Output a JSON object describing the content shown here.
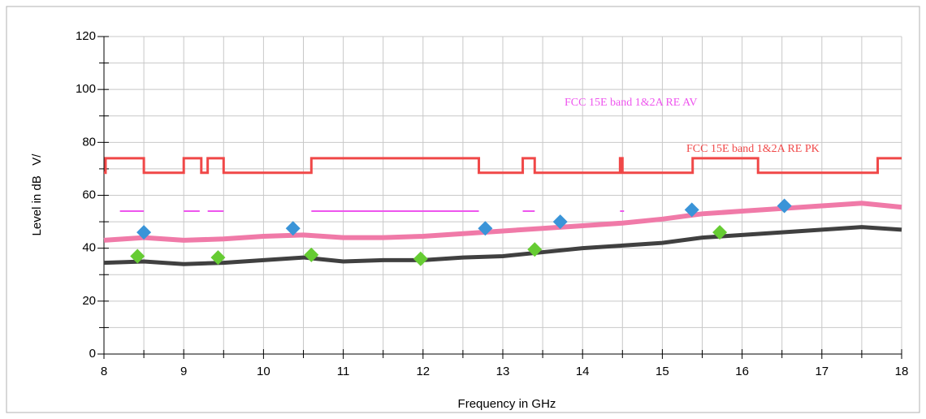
{
  "chart_data": {
    "type": "line",
    "xlabel": "Frequency in GHz",
    "ylabel": "Level in dB   V/",
    "xlim": [
      8,
      18
    ],
    "ylim": [
      0,
      120
    ],
    "xticks": [
      8,
      9,
      10,
      11,
      12,
      13,
      14,
      15,
      16,
      17,
      18
    ],
    "yticks": [
      0,
      20,
      40,
      60,
      80,
      100,
      120
    ],
    "xminor": [
      8.5,
      9.5,
      10.5,
      11.5,
      12.5,
      13.5,
      14.5,
      15.5,
      16.5,
      17.5
    ],
    "yminor": [
      10,
      30,
      50,
      70,
      90,
      110
    ],
    "grid": true,
    "annotations": [
      {
        "text": "FCC 15E band 1&2A RE AV",
        "color": "#ee55ee"
      },
      {
        "text": "FCC 15E band 1&2A RE PK",
        "color": "#f04848"
      }
    ],
    "series": [
      {
        "kind": "line",
        "color": "#f04848",
        "width": 3,
        "x": [
          8,
          8.02,
          8.02,
          8.5,
          8.5,
          9,
          9,
          9.22,
          9.22,
          9.3,
          9.3,
          9.5,
          9.5,
          10.6,
          10.6,
          12.7,
          12.7,
          13.25,
          13.25,
          13.4,
          13.4,
          14.47,
          14.47,
          14.5,
          14.5,
          15.38,
          15.38,
          16.2,
          16.2,
          17.7,
          17.7,
          18
        ],
        "values": [
          68.5,
          68.5,
          74,
          74,
          68.5,
          68.5,
          74,
          74,
          68.5,
          68.5,
          74,
          74,
          68.5,
          68.5,
          74,
          74,
          68.5,
          68.5,
          74,
          74,
          68.5,
          68.5,
          74,
          74,
          68.5,
          68.5,
          74,
          74,
          68.5,
          68.5,
          74,
          74
        ]
      },
      {
        "kind": "line",
        "color": "#ee55ee",
        "width": 2,
        "x": [
          8.2,
          8.5,
          8.5,
          9.0,
          9.2,
          9.2,
          9.3,
          9.5,
          9.5,
          10.6,
          12.7,
          12.7,
          13.25,
          13.4,
          13.4,
          14.47,
          14.52
        ],
        "values": [
          54,
          54,
          null,
          54,
          54,
          null,
          54,
          54,
          null,
          54,
          54,
          null,
          54,
          54,
          null,
          54,
          54
        ]
      },
      {
        "kind": "line",
        "color": "#f07aa8",
        "width": 6,
        "x": [
          8,
          8.5,
          9,
          9.5,
          10,
          10.5,
          11,
          11.5,
          12,
          12.5,
          13,
          13.5,
          14,
          14.5,
          15,
          15.5,
          16,
          16.5,
          17,
          17.5,
          18
        ],
        "values": [
          43,
          44,
          43,
          43.5,
          44.5,
          45,
          44,
          44,
          44.5,
          45.5,
          46.5,
          47.5,
          48.5,
          49.5,
          51,
          53,
          54,
          55,
          56,
          57,
          55.5
        ]
      },
      {
        "kind": "line",
        "color": "#404040",
        "width": 5,
        "x": [
          8,
          8.5,
          9,
          9.5,
          10,
          10.5,
          11,
          11.5,
          12,
          12.5,
          13,
          13.5,
          14,
          14.5,
          15,
          15.5,
          16,
          16.5,
          17,
          17.5,
          18
        ],
        "values": [
          34.5,
          35,
          34,
          34.5,
          35.5,
          36.5,
          35,
          35.5,
          35.5,
          36.5,
          37,
          38.5,
          40,
          41,
          42,
          44,
          45,
          46,
          47,
          48,
          47
        ]
      },
      {
        "kind": "marker",
        "color": "#3a94d8",
        "x": [
          8.5,
          10.37,
          12.78,
          13.72,
          15.37,
          16.53
        ],
        "values": [
          46,
          47.5,
          47.5,
          50,
          54.5,
          56
        ]
      },
      {
        "kind": "marker",
        "color": "#66cc33",
        "x": [
          8.42,
          9.43,
          10.6,
          11.97,
          13.4,
          15.72
        ],
        "values": [
          37,
          36.5,
          37.5,
          36,
          39.5,
          46
        ]
      }
    ]
  }
}
